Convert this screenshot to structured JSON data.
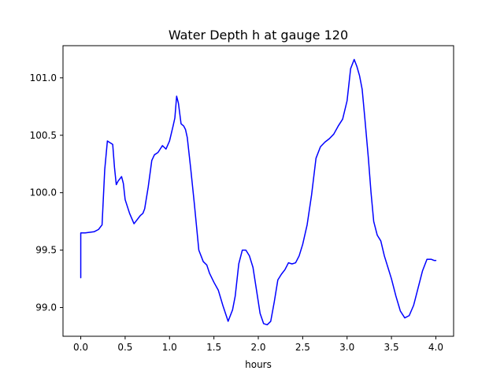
{
  "chart_data": {
    "type": "line",
    "title": "Water Depth h at gauge 120",
    "xlabel": "hours",
    "ylabel": "",
    "xlim": [
      -0.2,
      4.2
    ],
    "ylim": [
      98.75,
      101.28
    ],
    "xticks": [
      0.0,
      0.5,
      1.0,
      1.5,
      2.0,
      2.5,
      3.0,
      3.5,
      4.0
    ],
    "xtick_labels": [
      "0.0",
      "0.5",
      "1.0",
      "1.5",
      "2.0",
      "2.5",
      "3.0",
      "3.5",
      "4.0"
    ],
    "yticks": [
      99.0,
      99.5,
      100.0,
      100.5,
      101.0
    ],
    "ytick_labels": [
      "99.0",
      "99.5",
      "100.0",
      "100.5",
      "101.0"
    ],
    "grid": false,
    "series": [
      {
        "color": "#0000ff",
        "x": [
          0.0,
          0.0,
          0.05,
          0.15,
          0.2,
          0.24,
          0.27,
          0.3,
          0.32,
          0.36,
          0.38,
          0.4,
          0.42,
          0.46,
          0.48,
          0.5,
          0.55,
          0.6,
          0.62,
          0.67,
          0.7,
          0.72,
          0.76,
          0.8,
          0.83,
          0.87,
          0.92,
          0.96,
          1.0,
          1.04,
          1.06,
          1.08,
          1.1,
          1.13,
          1.16,
          1.18,
          1.2,
          1.24,
          1.28,
          1.33,
          1.38,
          1.42,
          1.45,
          1.5,
          1.55,
          1.6,
          1.66,
          1.71,
          1.74,
          1.78,
          1.82,
          1.86,
          1.9,
          1.94,
          1.98,
          2.02,
          2.06,
          2.1,
          2.14,
          2.18,
          2.22,
          2.26,
          2.3,
          2.34,
          2.38,
          2.42,
          2.46,
          2.5,
          2.55,
          2.6,
          2.65,
          2.7,
          2.75,
          2.8,
          2.85,
          2.9,
          2.95,
          3.0,
          3.04,
          3.08,
          3.11,
          3.14,
          3.17,
          3.2,
          3.24,
          3.27,
          3.3,
          3.34,
          3.38,
          3.42,
          3.46,
          3.5,
          3.55,
          3.6,
          3.65,
          3.7,
          3.75,
          3.8,
          3.85,
          3.9,
          3.95,
          3.98,
          4.0
        ],
        "y": [
          99.26,
          99.65,
          99.65,
          99.66,
          99.68,
          99.72,
          100.2,
          100.45,
          100.44,
          100.42,
          100.22,
          100.07,
          100.1,
          100.14,
          100.08,
          99.94,
          99.82,
          99.73,
          99.75,
          99.8,
          99.82,
          99.86,
          100.05,
          100.28,
          100.33,
          100.35,
          100.41,
          100.38,
          100.45,
          100.58,
          100.65,
          100.84,
          100.78,
          100.6,
          100.58,
          100.55,
          100.48,
          100.2,
          99.9,
          99.5,
          99.4,
          99.37,
          99.3,
          99.22,
          99.15,
          99.02,
          98.88,
          98.98,
          99.1,
          99.38,
          99.5,
          99.5,
          99.45,
          99.35,
          99.15,
          98.95,
          98.86,
          98.85,
          98.88,
          99.05,
          99.24,
          99.29,
          99.33,
          99.39,
          99.38,
          99.39,
          99.45,
          99.55,
          99.72,
          99.98,
          100.3,
          100.4,
          100.44,
          100.47,
          100.51,
          100.58,
          100.64,
          100.8,
          101.08,
          101.16,
          101.1,
          101.02,
          100.9,
          100.65,
          100.3,
          100.0,
          99.75,
          99.63,
          99.58,
          99.45,
          99.35,
          99.25,
          99.1,
          98.97,
          98.91,
          98.93,
          99.02,
          99.17,
          99.32,
          99.42,
          99.42,
          99.41,
          99.41
        ]
      }
    ]
  }
}
